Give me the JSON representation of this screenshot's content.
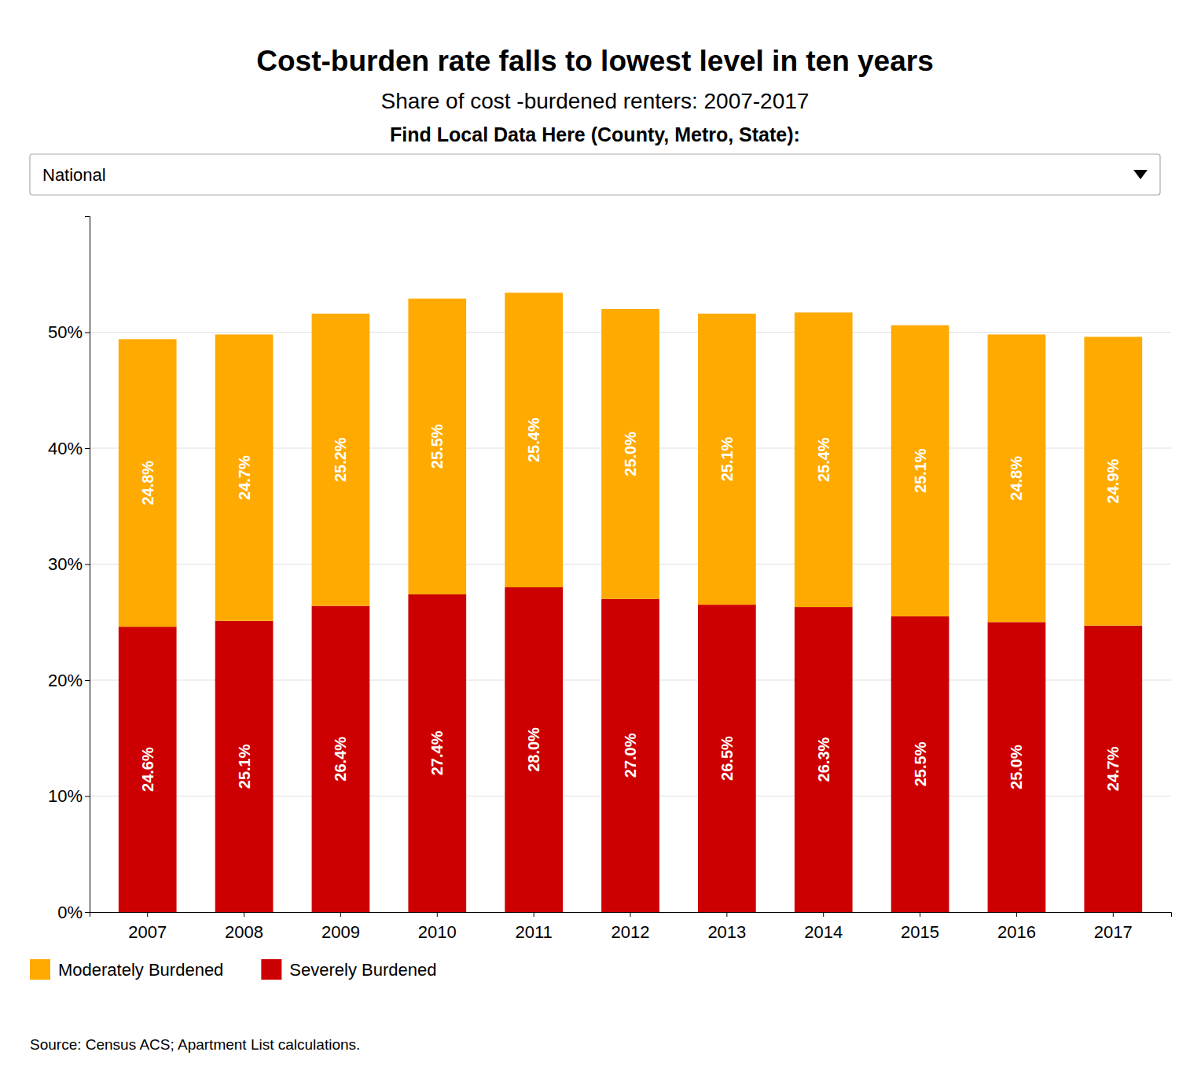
{
  "chart_data": {
    "type": "bar",
    "stacked": true,
    "title": "Cost-burden rate falls to lowest level in ten years",
    "subtitle": "Share of cost -burdened renters: 2007-2017",
    "annotations": [
      "Find Local Data Here (County, Metro, State):",
      "National",
      "Source: Census ACS; Apartment List calculations."
    ],
    "categories": [
      "2007",
      "2008",
      "2009",
      "2010",
      "2011",
      "2012",
      "2013",
      "2014",
      "2015",
      "2016",
      "2017"
    ],
    "series": [
      {
        "name": "Severely Burdened",
        "color": "#CC0000",
        "values": [
          24.6,
          25.1,
          26.4,
          27.4,
          28.0,
          27.0,
          26.5,
          26.3,
          25.5,
          25.0,
          24.7
        ],
        "value_labels": [
          "24.6%",
          "25.1%",
          "26.4%",
          "27.4%",
          "28.0%",
          "27.0%",
          "26.5%",
          "26.3%",
          "25.5%",
          "25.0%",
          "24.7%"
        ]
      },
      {
        "name": "Moderately Burdened",
        "color": "#FFAA00",
        "values": [
          24.8,
          24.7,
          25.2,
          25.5,
          25.4,
          25.0,
          25.1,
          25.4,
          25.1,
          24.8,
          24.9
        ],
        "value_labels": [
          "24.8%",
          "24.7%",
          "25.2%",
          "25.5%",
          "25.4%",
          "25.0%",
          "25.1%",
          "25.4%",
          "25.1%",
          "24.8%",
          "24.9%"
        ]
      }
    ],
    "ylim": [
      0,
      60
    ],
    "yticks": [
      {
        "value": 0,
        "label": "0%"
      },
      {
        "value": 10,
        "label": "10%"
      },
      {
        "value": 20,
        "label": "20%"
      },
      {
        "value": 30,
        "label": "30%"
      },
      {
        "value": 40,
        "label": "40%"
      },
      {
        "value": 50,
        "label": "50%"
      }
    ],
    "grid": true,
    "data_labels": true,
    "legend": "bottom"
  }
}
